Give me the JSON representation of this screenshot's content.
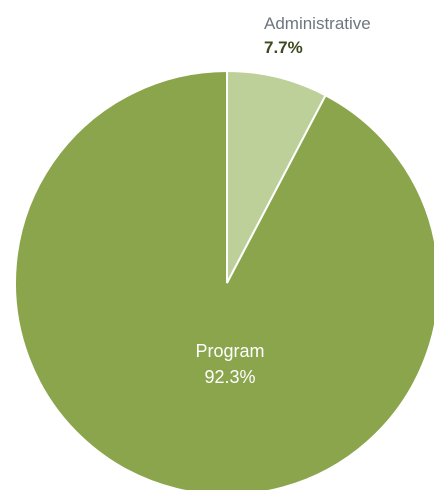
{
  "chart_data": {
    "type": "pie",
    "title": "",
    "start_angle_deg": 0,
    "direction": "clockwise",
    "slices": [
      {
        "name": "Administrative",
        "value": 7.7,
        "value_label": "7.7%",
        "color": "#bdd09a",
        "label_position": "outside-top",
        "name_color": "#6d7680",
        "value_color": "#3c4a1f"
      },
      {
        "name": "Program",
        "value": 92.3,
        "value_label": "92.3%",
        "color": "#8aa54c",
        "label_position": "inside-center",
        "name_color": "#ffffff",
        "value_color": "#ffffff"
      }
    ],
    "legend": "none"
  }
}
